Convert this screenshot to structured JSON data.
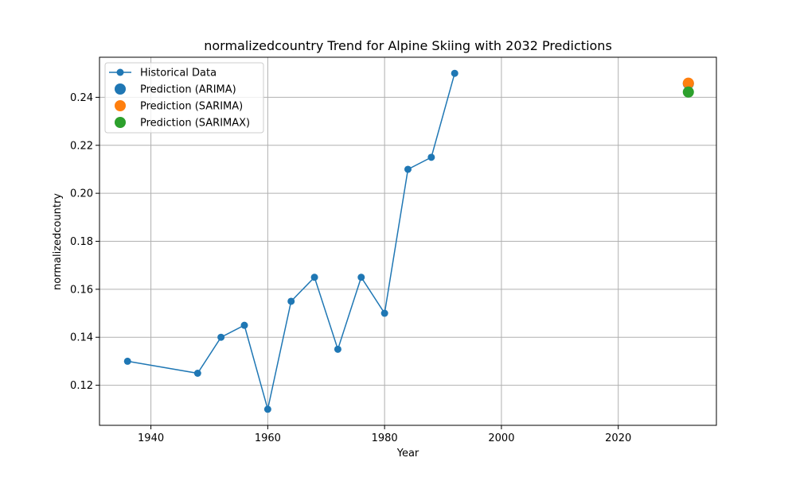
{
  "chart_data": {
    "type": "line",
    "title": "normalizedcountry Trend for Alpine Skiing with 2032 Predictions",
    "xlabel": "Year",
    "ylabel": "normalizedcountry",
    "xlim": [
      1931.2,
      2036.8
    ],
    "ylim": [
      0.1033,
      0.2567
    ],
    "x_ticks": [
      1940,
      1960,
      1980,
      2000,
      2020
    ],
    "y_ticks": [
      0.12,
      0.14,
      0.16,
      0.18,
      0.2,
      0.22,
      0.24
    ],
    "y_tick_labels": [
      "0.12",
      "0.14",
      "0.16",
      "0.18",
      "0.20",
      "0.22",
      "0.24"
    ],
    "grid": true,
    "legend_position": "top-left",
    "series": [
      {
        "name": "Historical Data",
        "kind": "line-marker",
        "color": "#1f77b4",
        "x": [
          1936,
          1948,
          1952,
          1956,
          1960,
          1964,
          1968,
          1972,
          1976,
          1980,
          1984,
          1988,
          1992
        ],
        "y": [
          0.13,
          0.125,
          0.14,
          0.145,
          0.11,
          0.155,
          0.165,
          0.135,
          0.165,
          0.15,
          0.21,
          0.215,
          0.25
        ]
      },
      {
        "name": "Prediction (ARIMA)",
        "kind": "point",
        "color": "#1f77b4",
        "x": [
          2032
        ],
        "y": [
          0.2457
        ]
      },
      {
        "name": "Prediction (SARIMA)",
        "kind": "point",
        "color": "#ff7f0e",
        "x": [
          2032
        ],
        "y": [
          0.2459
        ]
      },
      {
        "name": "Prediction (SARIMAX)",
        "kind": "point",
        "color": "#2ca02c",
        "x": [
          2032
        ],
        "y": [
          0.2422
        ]
      }
    ]
  }
}
